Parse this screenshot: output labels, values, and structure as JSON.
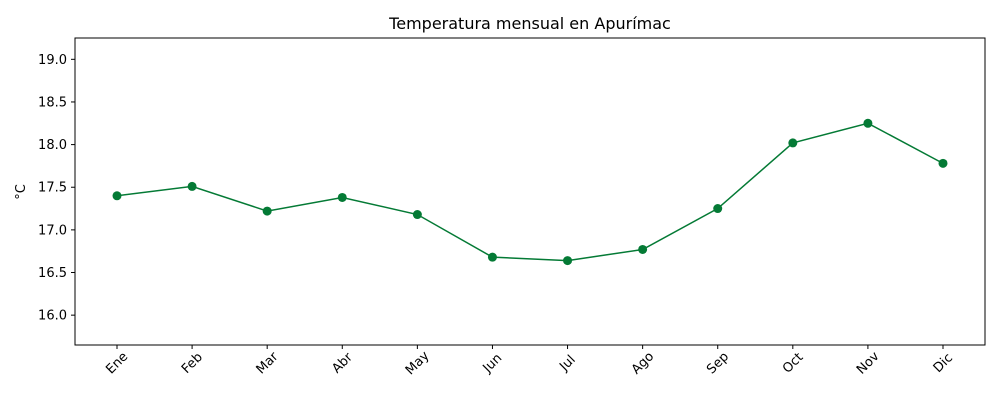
{
  "chart_data": {
    "type": "line",
    "title": "Temperatura mensual en Apurímac",
    "xlabel": "",
    "ylabel": "°C",
    "categories": [
      "Ene",
      "Feb",
      "Mar",
      "Abr",
      "May",
      "Jun",
      "Jul",
      "Ago",
      "Sep",
      "Oct",
      "Nov",
      "Dic"
    ],
    "series": [
      {
        "values": [
          17.4,
          17.51,
          17.22,
          17.38,
          17.18,
          16.68,
          16.64,
          16.77,
          17.25,
          18.02,
          18.25,
          17.78
        ],
        "color": "#047a35",
        "marker": "circle"
      }
    ],
    "ylim": [
      15.65,
      19.25
    ],
    "yticks": [
      "16.0",
      "16.5",
      "17.0",
      "17.5",
      "18.0",
      "18.5",
      "19.0"
    ],
    "grid": false,
    "legend": "none"
  }
}
